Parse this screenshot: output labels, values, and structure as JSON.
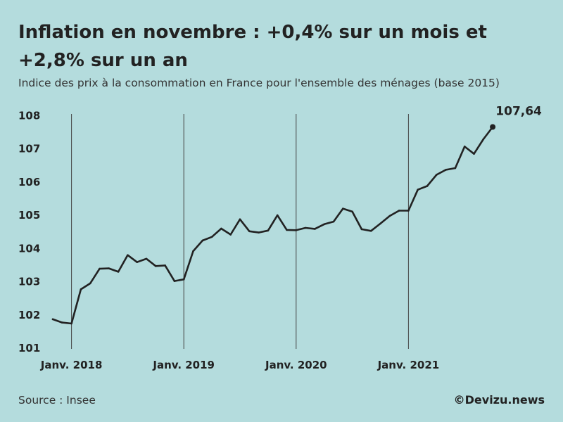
{
  "header": {
    "title": "Inflation en novembre : +0,4% sur un mois et +2,8% sur un an",
    "subtitle": "Indice des prix à la consommation en France pour l'ensemble des ménages (base 2015)"
  },
  "footer": {
    "source": "Source : Insee",
    "credit": "©Devizu.news"
  },
  "colors": {
    "background": "#b4dcdd",
    "line": "#222222",
    "vertical_rules": "#444444"
  },
  "chart_data": {
    "type": "line",
    "title": "Inflation en novembre : +0,4% sur un mois et +2,8% sur un an",
    "subtitle": "Indice des prix à la consommation en France pour l'ensemble des ménages (base 2015)",
    "xlabel": "",
    "ylabel": "",
    "ylim": [
      101,
      108
    ],
    "yticks": [
      101,
      102,
      103,
      104,
      105,
      106,
      107,
      108
    ],
    "grid": false,
    "x_start": "2017-11",
    "x_tick_labels": [
      {
        "label": "Janv. 2018",
        "month": "2018-01"
      },
      {
        "label": "Janv. 2019",
        "month": "2019-01"
      },
      {
        "label": "Janv. 2020",
        "month": "2020-01"
      },
      {
        "label": "Janv. 2021",
        "month": "2021-01"
      }
    ],
    "end_label": "107,64",
    "series": [
      {
        "values": [
          101.85,
          101.75,
          101.72,
          102.75,
          102.93,
          103.37,
          103.38,
          103.28,
          103.78,
          103.57,
          103.67,
          103.45,
          103.47,
          103.0,
          103.05,
          103.9,
          104.22,
          104.33,
          104.58,
          104.4,
          104.86,
          104.5,
          104.46,
          104.52,
          104.98,
          104.54,
          104.53,
          104.6,
          104.57,
          104.71,
          104.79,
          105.18,
          105.09,
          104.56,
          104.51,
          104.73,
          104.96,
          105.12,
          105.12,
          105.75,
          105.86,
          106.2,
          106.35,
          106.4,
          107.05,
          106.83,
          107.27,
          107.64
        ]
      }
    ]
  }
}
